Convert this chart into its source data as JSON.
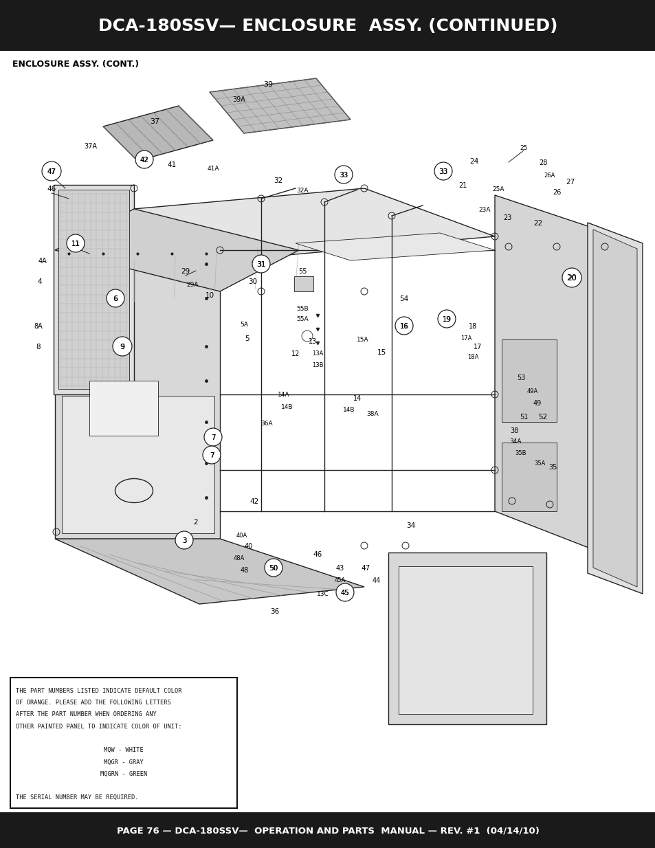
{
  "title": "DCA-180SSV— ENCLOSURE  ASSY. (CONTINUED)",
  "title_bg": "#1a1a1a",
  "title_color": "#ffffff",
  "subtitle": "ENCLOSURE ASSY. (CONT.)",
  "footer": "PAGE 76 — DCA-180SSV—  OPERATION AND PARTS  MANUAL — REV. #1  (04/14/10)",
  "footer_bg": "#1a1a1a",
  "footer_color": "#ffffff",
  "note_lines": [
    "THE PART NUMBERS LISTED INDICATE DEFAULT COLOR",
    "OF ORANGE. PLEASE ADD THE FOLLOWING LETTERS",
    "AFTER THE PART NUMBER WHEN ORDERING ANY",
    "OTHER PAINTED PANEL TO INDICATE COLOR OF UNIT:",
    "",
    "MQW - WHITE",
    "MQGR - GRAY",
    "MQGRN - GREEN",
    "",
    "THE SERIAL NUMBER MAY BE REQUIRED."
  ],
  "bg_color": "#ffffff",
  "lc": "#222222"
}
